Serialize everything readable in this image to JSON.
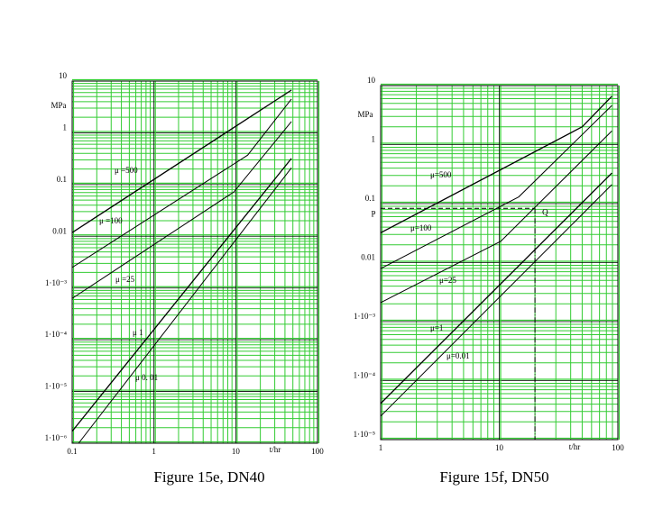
{
  "chart_data": [
    {
      "type": "line",
      "title": "Figure 15e, DN40",
      "x_label": "t/hr",
      "y_label": "MPa",
      "log_x": true,
      "log_y": true,
      "grid": true,
      "grid_color": "#33cc33",
      "xlim": [
        0.1,
        100
      ],
      "ylim": [
        1e-06,
        10
      ],
      "xticks": [
        0.1,
        1,
        10,
        100
      ],
      "yticks": [
        10,
        1,
        0.1,
        0.01,
        {
          "value": 0.001,
          "label": "1·10⁻³"
        },
        {
          "value": 0.0001,
          "label": "1·10⁻⁴"
        },
        {
          "value": 1e-05,
          "label": "1·10⁻⁵"
        },
        {
          "value": 1e-06,
          "label": "1·10⁻⁶"
        }
      ],
      "series": [
        {
          "name": "μ =500",
          "color": "#000000",
          "x": [
            0.1,
            48
          ],
          "values": [
            0.0118,
            6.7
          ]
        },
        {
          "name": "μ =100",
          "color": "#000000",
          "x": [
            0.1,
            14,
            48
          ],
          "values": [
            0.0025,
            0.37,
            4.5
          ]
        },
        {
          "name": "μ =25",
          "color": "#000000",
          "x": [
            0.1,
            9.5,
            48
          ],
          "values": [
            0.00063,
            0.072,
            1.65
          ]
        },
        {
          "name": "μ 1",
          "color": "#000000",
          "x": [
            0.1,
            48
          ],
          "values": [
            1.7e-06,
            0.32
          ]
        },
        {
          "name": "μ 0. 01",
          "color": "#000000",
          "x": [
            0.12,
            48
          ],
          "values": [
            1e-06,
            0.21
          ]
        }
      ]
    },
    {
      "type": "line",
      "title": "Figure 15f, DN50",
      "x_label": "t/hr",
      "y_label": "MPa",
      "log_x": true,
      "log_y": true,
      "grid": true,
      "grid_color": "#33cc33",
      "xlim": [
        1,
        100
      ],
      "ylim": [
        1e-05,
        10
      ],
      "xticks": [
        1,
        10,
        100
      ],
      "yticks": [
        10,
        1,
        0.1,
        0.01,
        {
          "value": 0.001,
          "label": "1·10⁻³"
        },
        {
          "value": 0.0001,
          "label": "1·10⁻⁴"
        },
        {
          "value": 1e-05,
          "label": "1·10⁻⁵"
        }
      ],
      "series": [
        {
          "name": "μ=500",
          "color": "#000000",
          "x": [
            1,
            50,
            89
          ],
          "values": [
            0.032,
            2.0,
            6.6
          ]
        },
        {
          "name": "μ=100",
          "color": "#000000",
          "x": [
            1,
            14.6,
            89
          ],
          "values": [
            0.0079,
            0.13,
            4.6
          ]
        },
        {
          "name": "μ=25",
          "color": "#000000",
          "x": [
            1,
            10.3,
            89
          ],
          "values": [
            0.0021,
            0.023,
            1.7
          ]
        },
        {
          "name": "μ=1",
          "color": "#000000",
          "x": [
            1,
            89
          ],
          "values": [
            4.1e-05,
            0.33
          ]
        },
        {
          "name": "μ=0.01",
          "color": "#000000",
          "x": [
            1,
            89
          ],
          "values": [
            2.5e-05,
            0.21
          ]
        }
      ],
      "reference_point": {
        "x": 20,
        "y": 0.083,
        "y_label": "P",
        "label": "Q"
      }
    }
  ]
}
